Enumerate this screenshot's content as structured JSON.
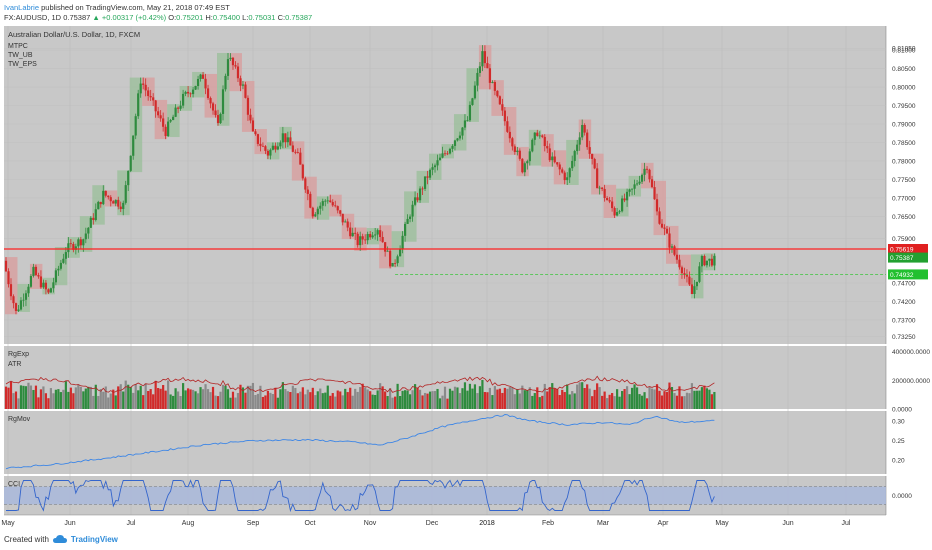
{
  "header": {
    "author": "IvanLabrie",
    "published_text": "published on TradingView.com, May 21, 2018 07:49 EST",
    "symbol": "FX:AUDUSD, 1D",
    "last": "0.75387",
    "change": "▲ +0.00317 (+0.42%)",
    "o_label": "O:",
    "o": "0.75201",
    "h_label": "H:",
    "h": "0.75400",
    "l_label": "L:",
    "l": "0.75031",
    "c_label": "C:",
    "c": "0.75387"
  },
  "footer": {
    "created_with": "Created with",
    "brand": "TradingView",
    "logo_icon": "tradingview-cloud-icon"
  },
  "colors": {
    "bg": "#c8c8c8",
    "up": "#2e8b3e",
    "down": "#d12a2a",
    "neutral": "#8a8a8a",
    "green_box": "#9fbf9f",
    "red_box": "#d7a1a1",
    "resistance": "#ff2020",
    "rgmov": "#3d86e6",
    "atr": "#b22222",
    "cci": "#3465cc",
    "cci_band": "#a8b8dc"
  },
  "panes": {
    "main": {
      "title": "Australian Dollar/U.S. Dollar, 1D, FXCM",
      "studies": [
        "MTPC",
        "TW_UB",
        "TW_EPS"
      ]
    },
    "rgexp": {
      "title": "RgExp",
      "sub": "ATR"
    },
    "rgmov": {
      "title": "RgMov"
    },
    "cci": {
      "title": "CCI"
    }
  },
  "chart_data": {
    "type": "candlestick",
    "x_ticks": [
      "May",
      "Jun",
      "Jul",
      "Aug",
      "Sep",
      "Oct",
      "Nov",
      "Dec",
      "2018",
      "Feb",
      "Mar",
      "Apr",
      "May",
      "Jun",
      "Jul"
    ],
    "price_axis": [
      "0.81050",
      "0.81000",
      "0.80500",
      "0.80000",
      "0.79500",
      "0.79000",
      "0.78500",
      "0.78000",
      "0.77500",
      "0.77000",
      "0.76500",
      "0.75900",
      "0.74700",
      "0.74200",
      "0.73700",
      "0.73250"
    ],
    "price_labels": {
      "resistance": "0.75619",
      "last": "0.75387",
      "support": "0.74932"
    },
    "resistance_level": 0.75619,
    "support_level": 0.74932,
    "price_range": [
      0.7305,
      0.8165
    ],
    "anchors": [
      [
        0,
        0.753
      ],
      [
        5,
        0.739
      ],
      [
        12,
        0.75
      ],
      [
        18,
        0.744
      ],
      [
        25,
        0.756
      ],
      [
        32,
        0.759
      ],
      [
        40,
        0.771
      ],
      [
        48,
        0.768
      ],
      [
        55,
        0.802
      ],
      [
        60,
        0.795
      ],
      [
        65,
        0.788
      ],
      [
        72,
        0.797
      ],
      [
        80,
        0.803
      ],
      [
        86,
        0.789
      ],
      [
        90,
        0.8085
      ],
      [
        96,
        0.8
      ],
      [
        100,
        0.787
      ],
      [
        106,
        0.782
      ],
      [
        112,
        0.787
      ],
      [
        118,
        0.781
      ],
      [
        124,
        0.766
      ],
      [
        130,
        0.77
      ],
      [
        136,
        0.764
      ],
      [
        142,
        0.758
      ],
      [
        150,
        0.762
      ],
      [
        156,
        0.751
      ],
      [
        163,
        0.766
      ],
      [
        170,
        0.776
      ],
      [
        178,
        0.783
      ],
      [
        186,
        0.791
      ],
      [
        192,
        0.809
      ],
      [
        196,
        0.8
      ],
      [
        202,
        0.789
      ],
      [
        208,
        0.778
      ],
      [
        214,
        0.788
      ],
      [
        220,
        0.78
      ],
      [
        226,
        0.775
      ],
      [
        232,
        0.79
      ],
      [
        238,
        0.774
      ],
      [
        245,
        0.766
      ],
      [
        252,
        0.772
      ],
      [
        258,
        0.779
      ],
      [
        262,
        0.766
      ],
      [
        268,
        0.756
      ],
      [
        272,
        0.751
      ],
      [
        276,
        0.744
      ],
      [
        280,
        0.753
      ],
      [
        284,
        0.753
      ]
    ],
    "bars": 285,
    "rgexp_axis": [
      "400000.0000",
      "200000.0000",
      "0.0000"
    ],
    "rgmov_axis": [
      "0.30",
      "0.25",
      "0.20"
    ],
    "rgmov_anchors": [
      [
        0,
        0.18
      ],
      [
        20,
        0.19
      ],
      [
        40,
        0.205
      ],
      [
        60,
        0.222
      ],
      [
        80,
        0.24
      ],
      [
        100,
        0.25
      ],
      [
        120,
        0.252
      ],
      [
        140,
        0.246
      ],
      [
        150,
        0.238
      ],
      [
        160,
        0.255
      ],
      [
        175,
        0.285
      ],
      [
        190,
        0.305
      ],
      [
        200,
        0.315
      ],
      [
        210,
        0.3
      ],
      [
        225,
        0.29
      ],
      [
        240,
        0.296
      ],
      [
        250,
        0.29
      ],
      [
        260,
        0.312
      ],
      [
        270,
        0.296
      ],
      [
        284,
        0.3
      ]
    ],
    "cci_axis": [
      "0.0000"
    ]
  }
}
